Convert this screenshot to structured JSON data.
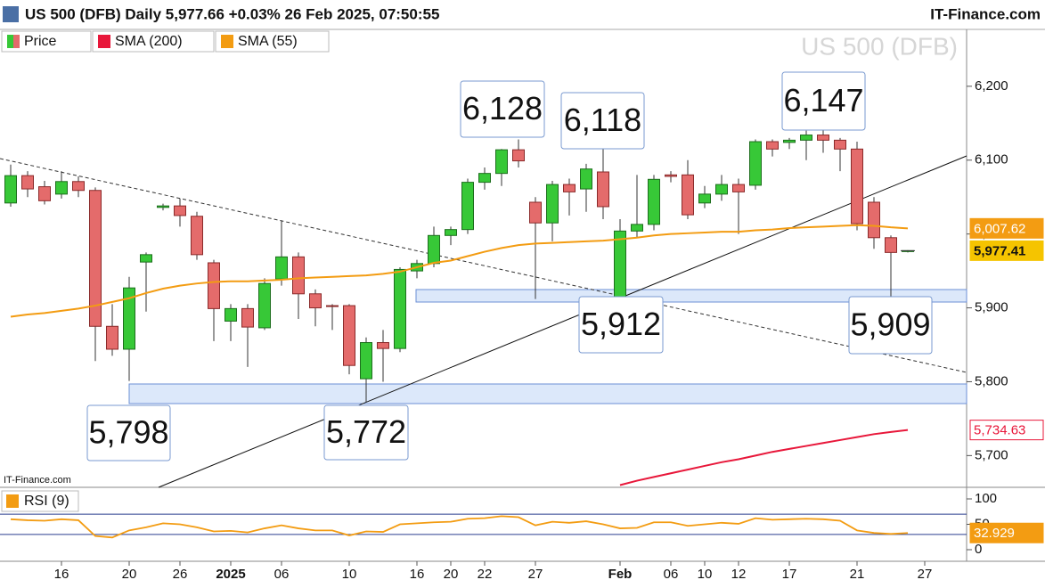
{
  "chart_data": {
    "type": "candlestick",
    "title": "US 500 (DFB) Daily 5,977.66 +0.03% 26 Feb 2025, 07:50:55",
    "brand": "IT-Finance.com",
    "watermark": "US 500 (DFB)",
    "source": "IT-Finance.com",
    "categories": [
      null,
      null,
      null,
      "16",
      null,
      null,
      null,
      "20",
      null,
      null,
      "26",
      null,
      null,
      "2025",
      null,
      null,
      "06",
      null,
      null,
      null,
      "10",
      null,
      null,
      null,
      "16",
      null,
      "20",
      null,
      "22",
      null,
      null,
      "27",
      null,
      null,
      null,
      null,
      "Feb",
      null,
      null,
      "06",
      null,
      "10",
      null,
      "12",
      null,
      null,
      "17",
      null,
      null,
      null,
      "21",
      null,
      null,
      null,
      "27"
    ],
    "series": [
      {
        "name": "Price",
        "up_color": "#37c837",
        "down_color": "#e46b6b",
        "value_label": "5,977.41",
        "open": [
          6042,
          6079,
          6064,
          6054,
          6071,
          6059,
          5875,
          5844,
          5962,
          6036,
          6038,
          6024,
          5961,
          5882,
          5899,
          5873,
          5939,
          5969,
          5919,
          5903,
          5903,
          5804,
          5853,
          5845,
          5950,
          5960,
          5998,
          6006,
          6070,
          6082,
          6114,
          6043,
          6015,
          6067,
          6061,
          6084,
          5915,
          6004,
          6013,
          6080,
          6080,
          6042,
          6054,
          6067,
          6066,
          6125,
          6124,
          6127,
          6134,
          6127,
          6115,
          6043,
          5995,
          5977,
          null
        ],
        "high": [
          6094,
          6085,
          6072,
          6085,
          6078,
          6063,
          5905,
          5942,
          5975,
          6041,
          6048,
          6030,
          5965,
          5905,
          5905,
          5940,
          6018,
          5975,
          5925,
          5905,
          5905,
          5860,
          5870,
          5955,
          5965,
          6010,
          6010,
          6075,
          6090,
          6115,
          6128,
          6050,
          6072,
          6075,
          6095,
          6118,
          6020,
          6080,
          6080,
          6085,
          6100,
          6065,
          6080,
          6075,
          6128,
          6128,
          6130,
          6140,
          6147,
          6130,
          6125,
          6050,
          5998,
          5978,
          null
        ],
        "low": [
          6037,
          6050,
          6040,
          6048,
          6050,
          5828,
          5835,
          5801,
          5895,
          6032,
          6010,
          5965,
          5855,
          5855,
          5820,
          5870,
          5930,
          5885,
          5875,
          5870,
          5810,
          5772,
          5800,
          5840,
          5940,
          5955,
          5985,
          6000,
          6060,
          6065,
          6090,
          5912,
          5990,
          6025,
          6030,
          6020,
          5912,
          5995,
          6005,
          6070,
          6020,
          6035,
          6045,
          6000,
          6060,
          6105,
          6115,
          6100,
          6110,
          6085,
          6005,
          5980,
          5909,
          5975,
          null
        ],
        "close": [
          6079,
          6061,
          6045,
          6071,
          6059,
          5875,
          5844,
          5927,
          5972,
          6038,
          6025,
          5972,
          5899,
          5899,
          5874,
          5933,
          5969,
          5919,
          5900,
          5902,
          5822,
          5853,
          5845,
          5952,
          5960,
          5998,
          6006,
          6070,
          6082,
          6114,
          6099,
          6015,
          6067,
          6057,
          6088,
          6037,
          6004,
          6013,
          6074,
          6078,
          6026,
          6054,
          6067,
          6057,
          6125,
          6115,
          6127,
          6134,
          6127,
          6115,
          6014,
          5995,
          5975,
          5977.41,
          null
        ]
      },
      {
        "name": "SMA (200)",
        "color": "#e8173a",
        "value_label": "5,734.63",
        "values": [
          null,
          null,
          null,
          null,
          null,
          null,
          null,
          null,
          null,
          null,
          null,
          null,
          null,
          null,
          null,
          null,
          null,
          null,
          null,
          null,
          null,
          null,
          null,
          null,
          null,
          null,
          null,
          null,
          null,
          null,
          null,
          null,
          null,
          null,
          null,
          null,
          5660,
          5666,
          5671,
          5676,
          5681,
          5686,
          5691,
          5695,
          5700,
          5705,
          5709,
          5713,
          5717,
          5721,
          5725,
          5729,
          5732,
          5734.63,
          null
        ]
      },
      {
        "name": "SMA (55)",
        "color": "#f39c12",
        "value_label": "6,007.62",
        "values": [
          5888,
          5891,
          5893,
          5896,
          5899,
          5903,
          5908,
          5913,
          5920,
          5926,
          5930,
          5933,
          5935,
          5936,
          5936,
          5937,
          5938,
          5940,
          5941,
          5942,
          5943,
          5944,
          5946,
          5949,
          5955,
          5961,
          5964,
          5970,
          5976,
          5981,
          5985,
          5987,
          5988,
          5989,
          5990,
          5991,
          5993,
          5995,
          5998,
          6000,
          6001,
          6002,
          6003,
          6003,
          6005,
          6006,
          6008,
          6009,
          6010,
          6011,
          6012,
          6011,
          6009,
          6007.62,
          null
        ]
      }
    ],
    "ylim": [
      5657,
      6277
    ],
    "yticks": [
      {
        "value": 5700,
        "label": "5,700"
      },
      {
        "value": 5800,
        "label": "5,800"
      },
      {
        "value": 5900,
        "label": "5,900"
      },
      {
        "value": 6000,
        "label": "6,000"
      },
      {
        "value": 6100,
        "label": "6,100"
      },
      {
        "value": 6200,
        "label": "6,200"
      }
    ],
    "annotations": [
      {
        "text": "6,128"
      },
      {
        "text": "6,118"
      },
      {
        "text": "6,147"
      },
      {
        "text": "5,798"
      },
      {
        "text": "5,772"
      },
      {
        "text": "5,912"
      },
      {
        "text": "5,909"
      }
    ],
    "rsi": {
      "name": "RSI (9)",
      "color": "#f39c12",
      "value_label": "32.929",
      "values": [
        60,
        58,
        57,
        60,
        58,
        27,
        24,
        38,
        44,
        52,
        50,
        44,
        36,
        37,
        34,
        42,
        48,
        42,
        38,
        38,
        28,
        36,
        35,
        50,
        52,
        54,
        55,
        61,
        62,
        66,
        64,
        48,
        55,
        53,
        56,
        50,
        42,
        43,
        54,
        54,
        47,
        50,
        53,
        51,
        62,
        59,
        60,
        61,
        60,
        57,
        38,
        33,
        31,
        32.929,
        null
      ],
      "ylim": [
        0,
        100
      ],
      "yticks": [
        100,
        50,
        0
      ],
      "levels": [
        70,
        30
      ]
    }
  }
}
